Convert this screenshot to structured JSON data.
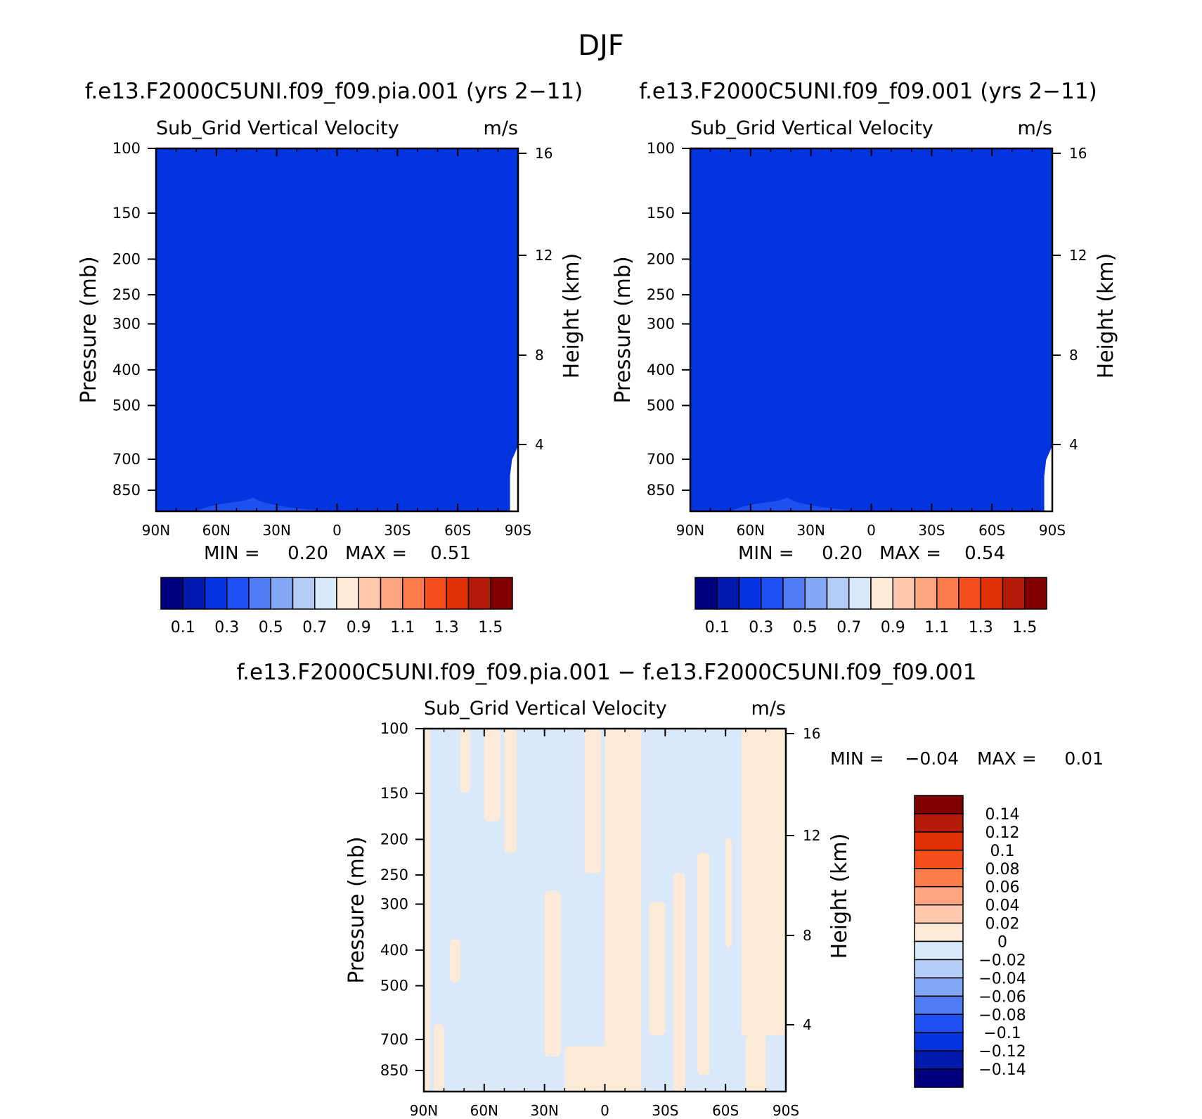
{
  "figure_title": "DJF",
  "chart_data": [
    {
      "type": "heatmap",
      "id": "panel-1",
      "title": "f.e13.F2000C5UNI.f09_f09.pia.001 (yrs 2−11)",
      "subtitle_left": "Sub_Grid Vertical Velocity",
      "subtitle_right": "m/s",
      "ylabel": "Pressure (mb)",
      "y2label": "Height (km)",
      "xticks": [
        "90N",
        "60N",
        "30N",
        "0",
        "30S",
        "60S",
        "90S"
      ],
      "yticks": [
        100,
        150,
        200,
        250,
        300,
        400,
        500,
        700,
        850
      ],
      "y2ticks": [
        16,
        12,
        8,
        4
      ],
      "ylim": [
        1000,
        100
      ],
      "y_scale": "log",
      "xlim": [
        90,
        -90
      ],
      "min_label": "MIN =",
      "min_value": "0.20",
      "max_label": "MAX =",
      "max_value": "0.51",
      "fill_value": 0.3,
      "fill_color": "#0433E0",
      "bump_color": "#1E50F0",
      "colorbar": {
        "orientation": "horizontal",
        "labels": [
          "0.1",
          "0.3",
          "0.5",
          "0.7",
          "0.9",
          "1.1",
          "1.3",
          "1.5"
        ],
        "colors": [
          "#000080",
          "#001AB0",
          "#0433E0",
          "#1E50F5",
          "#4F7CF5",
          "#82A7F5",
          "#B3CCF8",
          "#D9E9FA",
          "#FEEAD8",
          "#FEC8AD",
          "#FDA57F",
          "#FD7C4C",
          "#F64F1C",
          "#E13008",
          "#B41A08",
          "#800000"
        ]
      }
    },
    {
      "type": "heatmap",
      "id": "panel-2",
      "title": "f.e13.F2000C5UNI.f09_f09.001 (yrs 2−11)",
      "subtitle_left": "Sub_Grid Vertical Velocity",
      "subtitle_right": "m/s",
      "ylabel": "Pressure (mb)",
      "y2label": "Height (km)",
      "xticks": [
        "90N",
        "60N",
        "30N",
        "0",
        "30S",
        "60S",
        "90S"
      ],
      "yticks": [
        100,
        150,
        200,
        250,
        300,
        400,
        500,
        700,
        850
      ],
      "y2ticks": [
        16,
        12,
        8,
        4
      ],
      "ylim": [
        1000,
        100
      ],
      "y_scale": "log",
      "xlim": [
        90,
        -90
      ],
      "min_label": "MIN =",
      "min_value": "0.20",
      "max_label": "MAX =",
      "max_value": "0.54",
      "fill_value": 0.3,
      "fill_color": "#0433E0",
      "bump_color": "#1E50F0",
      "colorbar": {
        "orientation": "horizontal",
        "labels": [
          "0.1",
          "0.3",
          "0.5",
          "0.7",
          "0.9",
          "1.1",
          "1.3",
          "1.5"
        ],
        "colors": [
          "#000080",
          "#001AB0",
          "#0433E0",
          "#1E50F5",
          "#4F7CF5",
          "#82A7F5",
          "#B3CCF8",
          "#D9E9FA",
          "#FEEAD8",
          "#FEC8AD",
          "#FDA57F",
          "#FD7C4C",
          "#F64F1C",
          "#E13008",
          "#B41A08",
          "#800000"
        ]
      }
    },
    {
      "type": "heatmap",
      "id": "panel-diff",
      "title": "f.e13.F2000C5UNI.f09_f09.pia.001 − f.e13.F2000C5UNI.f09_f09.001",
      "subtitle_left": "Sub_Grid Vertical Velocity",
      "subtitle_right": "m/s",
      "ylabel": "Pressure (mb)",
      "y2label": "Height (km)",
      "xticks": [
        "90N",
        "60N",
        "30N",
        "0",
        "30S",
        "60S",
        "90S"
      ],
      "yticks": [
        100,
        150,
        200,
        250,
        300,
        400,
        500,
        700,
        850
      ],
      "y2ticks": [
        16,
        12,
        8,
        4
      ],
      "ylim": [
        1000,
        100
      ],
      "y_scale": "log",
      "xlim": [
        90,
        -90
      ],
      "min_label": "MIN =",
      "min_value": "−0.04",
      "max_label": "MAX =",
      "max_value": "0.01",
      "negative_color": "#D9E9FA",
      "positive_color": "#FEEAD8",
      "positive_regions": [
        {
          "lat_range": [
            90,
            87
          ],
          "p_range": [
            1000,
            100
          ]
        },
        {
          "lat_range": [
            72,
            67
          ],
          "p_range": [
            150,
            100
          ]
        },
        {
          "lat_range": [
            60,
            52
          ],
          "p_range": [
            180,
            100
          ]
        },
        {
          "lat_range": [
            50,
            44
          ],
          "p_range": [
            220,
            100
          ]
        },
        {
          "lat_range": [
            10,
            2
          ],
          "p_range": [
            250,
            100
          ]
        },
        {
          "lat_range": [
            0,
            -18
          ],
          "p_range": [
            1000,
            100
          ]
        },
        {
          "lat_range": [
            -22,
            -30
          ],
          "p_range": [
            700,
            300
          ]
        },
        {
          "lat_range": [
            -34,
            -40
          ],
          "p_range": [
            1000,
            250
          ]
        },
        {
          "lat_range": [
            -46,
            -52
          ],
          "p_range": [
            900,
            220
          ]
        },
        {
          "lat_range": [
            -60,
            -63
          ],
          "p_range": [
            400,
            200
          ]
        },
        {
          "lat_range": [
            -68,
            -90
          ],
          "p_range": [
            700,
            100
          ]
        },
        {
          "lat_range": [
            -70,
            -80
          ],
          "p_range": [
            1000,
            700
          ]
        },
        {
          "lat_range": [
            20,
            -5
          ],
          "p_range": [
            1000,
            750
          ]
        },
        {
          "lat_range": [
            30,
            22
          ],
          "p_range": [
            800,
            280
          ]
        },
        {
          "lat_range": [
            77,
            72
          ],
          "p_range": [
            500,
            380
          ]
        },
        {
          "lat_range": [
            85,
            80
          ],
          "p_range": [
            1000,
            650
          ]
        }
      ],
      "colorbar": {
        "orientation": "vertical",
        "labels": [
          "0.14",
          "0.12",
          "0.1",
          "0.08",
          "0.06",
          "0.04",
          "0.02",
          "0",
          "−0.02",
          "−0.04",
          "−0.06",
          "−0.08",
          "−0.1",
          "−0.12",
          "−0.14"
        ],
        "colors": [
          "#800000",
          "#B41A08",
          "#E13008",
          "#F64F1C",
          "#FD7C4C",
          "#FDA57F",
          "#FEC8AD",
          "#FEEAD8",
          "#D9E9FA",
          "#B3CCF8",
          "#82A7F5",
          "#4F7CF5",
          "#1E50F5",
          "#0433E0",
          "#001AB0",
          "#000080"
        ]
      }
    }
  ]
}
